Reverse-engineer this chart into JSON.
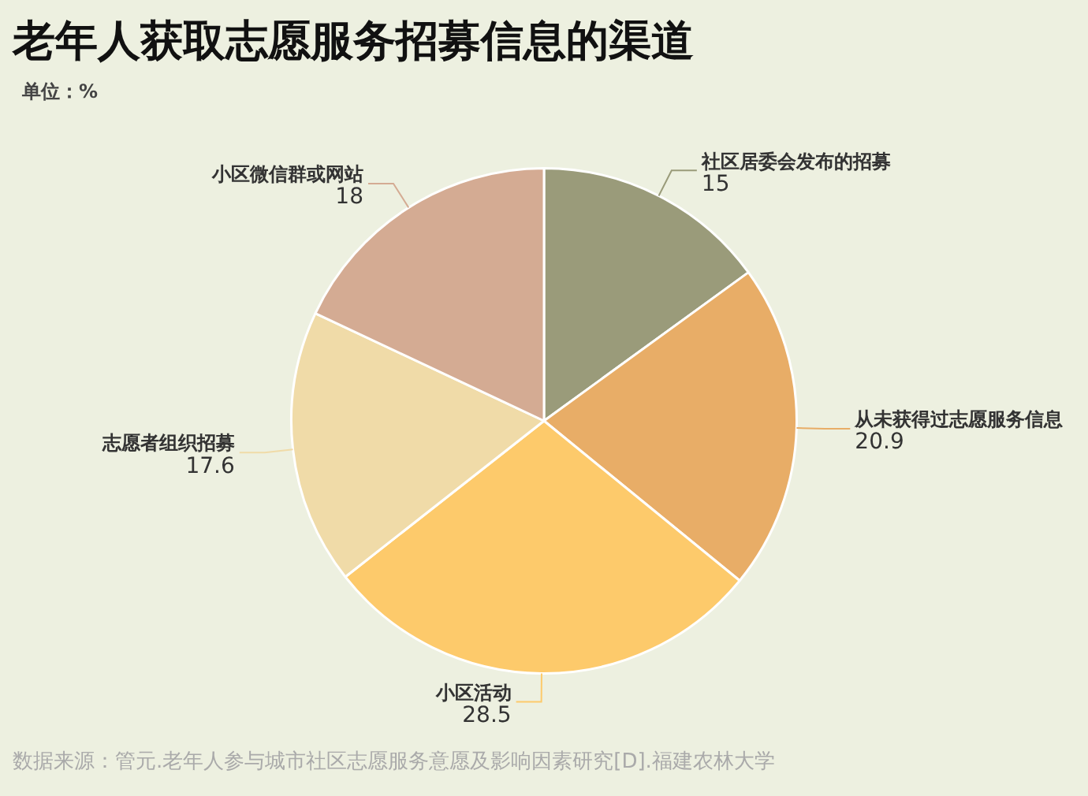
{
  "chart_data": {
    "type": "pie",
    "title": "老年人获取志愿服务招募信息的渠道",
    "subtitle": "单位：%",
    "categories": [
      "社区居委会发布的招募",
      "从未获得过志愿服务信息",
      "小区活动",
      "志愿者组织招募",
      "小区微信群或网站"
    ],
    "values": [
      15,
      20.9,
      28.5,
      17.6,
      18
    ],
    "colors": [
      "#9a9b7a",
      "#e8ad67",
      "#fdca6b",
      "#f0dba8",
      "#d4ab93"
    ],
    "data_labels": true,
    "legend": false,
    "annotations": [
      "数据来源：管元.老年人参与城市社区志愿服务意愿及影响因素研究[D].福建农林大学"
    ]
  }
}
